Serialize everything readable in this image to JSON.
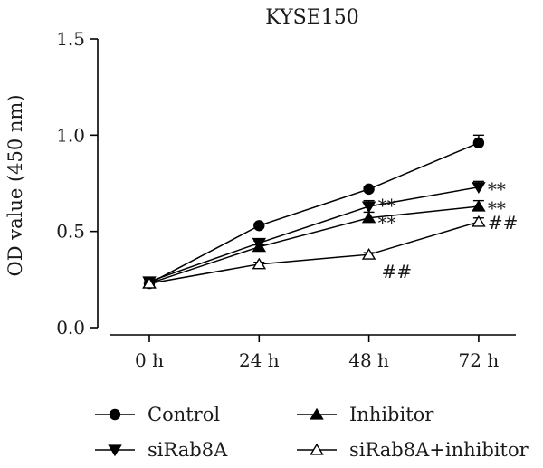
{
  "chart_data": {
    "type": "line",
    "title": "KYSE150",
    "xlabel": "",
    "ylabel": "OD value (450 nm)",
    "categories": [
      "0 h",
      "24 h",
      "48 h",
      "72 h"
    ],
    "ylim": [
      0.0,
      1.5
    ],
    "yticks": [
      "0.0",
      "0.5",
      "1.0",
      "1.5"
    ],
    "grid": false,
    "legend_position": "bottom",
    "series": [
      {
        "name": "Control",
        "marker": "circle-filled",
        "values": [
          0.23,
          0.53,
          0.72,
          0.96
        ],
        "errors": [
          0.02,
          0.01,
          0.01,
          0.04
        ],
        "annotations": [
          "",
          "",
          "",
          ""
        ]
      },
      {
        "name": "siRab8A",
        "marker": "triangle-down-filled",
        "values": [
          0.24,
          0.44,
          0.63,
          0.73
        ],
        "errors": [
          0.02,
          0.01,
          0.03,
          0.03
        ],
        "annotations": [
          "",
          "",
          "**",
          "**"
        ]
      },
      {
        "name": "Inhibitor",
        "marker": "triangle-up-filled",
        "values": [
          0.23,
          0.42,
          0.57,
          0.63
        ],
        "errors": [
          0.02,
          0.01,
          0.03,
          0.03
        ],
        "annotations": [
          "",
          "",
          "**",
          "**"
        ]
      },
      {
        "name": "siRab8A+inhibitor",
        "marker": "triangle-up-open",
        "values": [
          0.23,
          0.33,
          0.38,
          0.55
        ],
        "errors": [
          0.02,
          0.01,
          0.01,
          0.02
        ],
        "annotations": [
          "",
          "",
          "##",
          "##"
        ]
      }
    ]
  }
}
